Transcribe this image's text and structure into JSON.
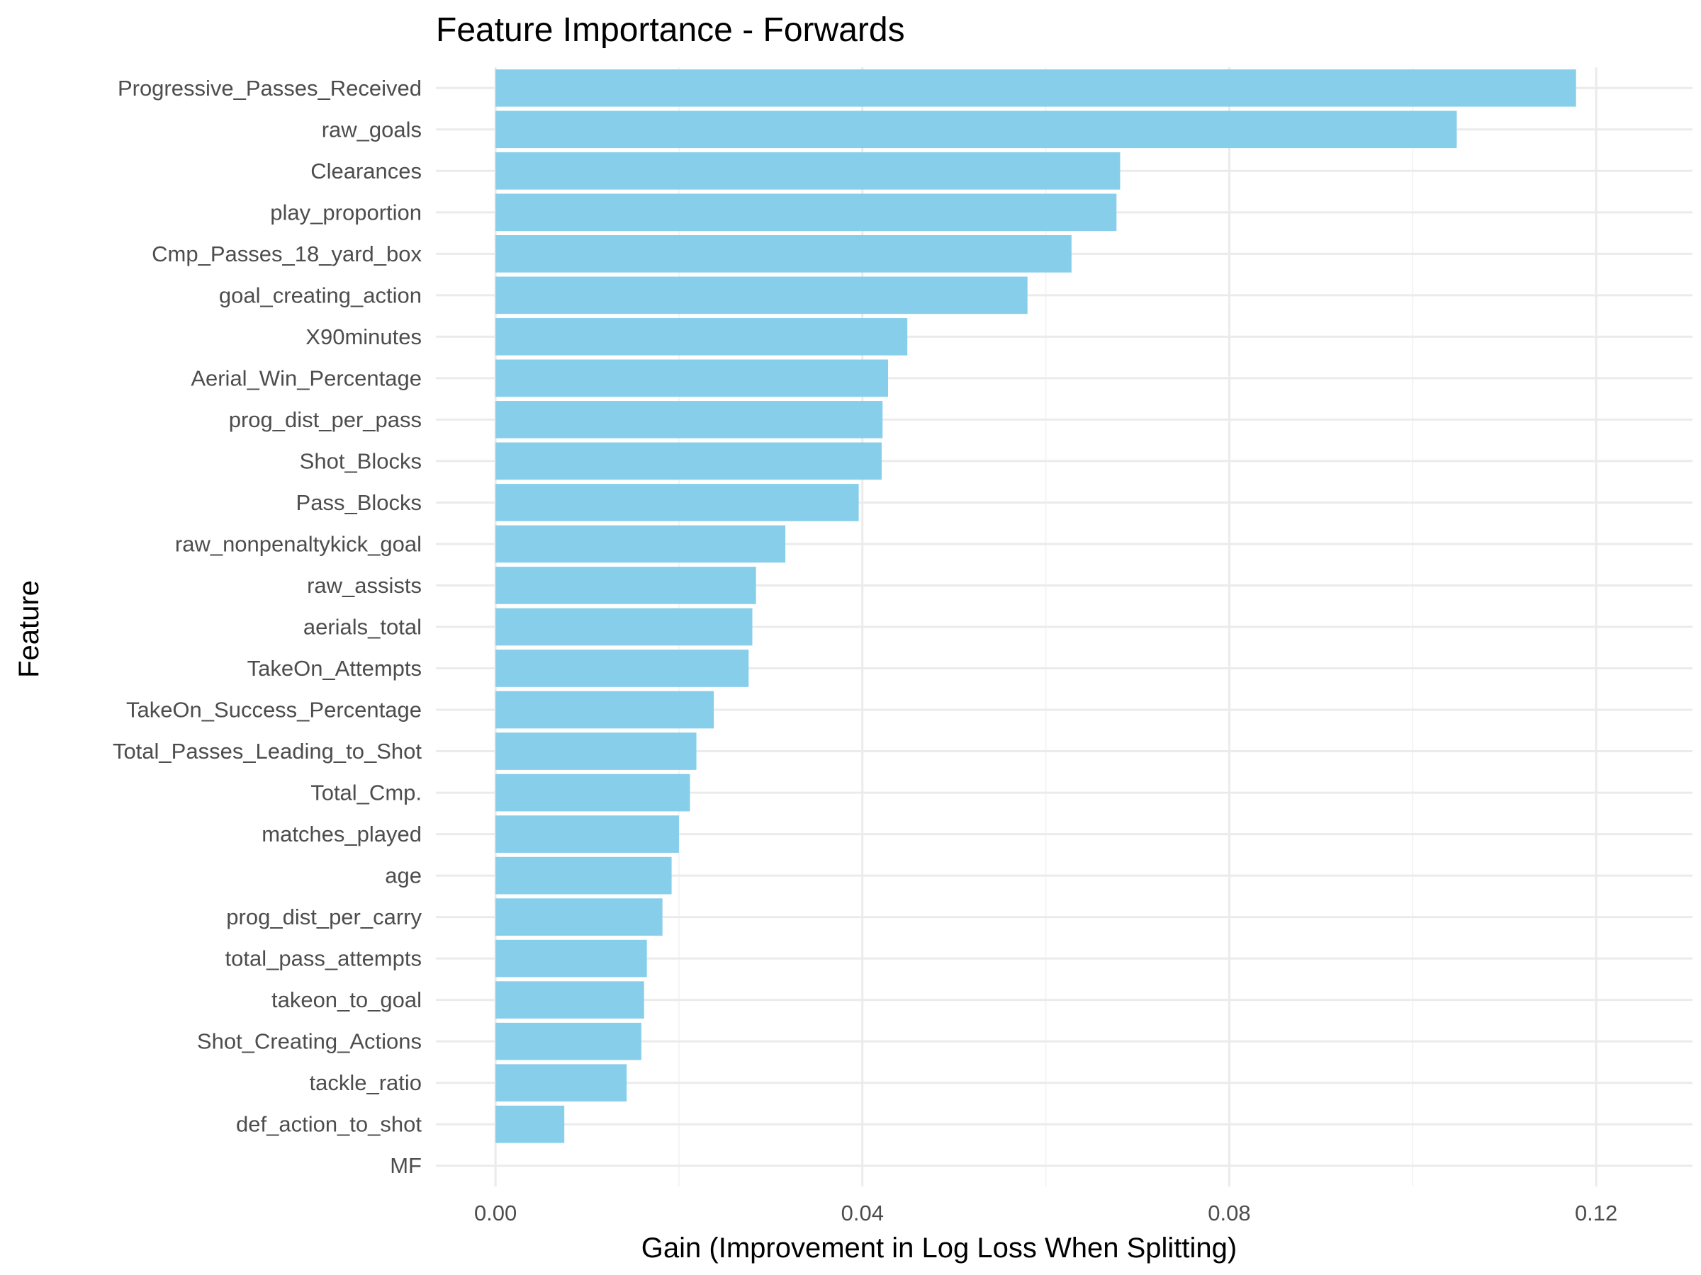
{
  "chart_data": {
    "type": "bar",
    "orientation": "horizontal",
    "title": "Feature Importance - Forwards",
    "xlabel": "Gain (Improvement in Log Loss When Splitting)",
    "ylabel": "Feature",
    "xlim": [
      -0.0065,
      0.1305
    ],
    "x_ticks": [
      0.0,
      0.04,
      0.08,
      0.12
    ],
    "x_tick_labels": [
      "0.00",
      "0.04",
      "0.08",
      "0.12"
    ],
    "grid": true,
    "legend": "none",
    "bar_color": "#87ceeb",
    "categories": [
      "Progressive_Passes_Received",
      "raw_goals",
      "Clearances",
      "play_proportion",
      "Cmp_Passes_18_yard_box",
      "goal_creating_action",
      "X90minutes",
      "Aerial_Win_Percentage",
      "prog_dist_per_pass",
      "Shot_Blocks",
      "Pass_Blocks",
      "raw_nonpenaltykick_goal",
      "raw_assists",
      "aerials_total",
      "TakeOn_Attempts",
      "TakeOn_Success_Percentage",
      "Total_Passes_Leading_to_Shot",
      "Total_Cmp.",
      "matches_played",
      "age",
      "prog_dist_per_carry",
      "total_pass_attempts",
      "takeon_to_goal",
      "Shot_Creating_Actions",
      "tackle_ratio",
      "def_action_to_shot",
      "MF"
    ],
    "values": [
      0.1178,
      0.1048,
      0.0681,
      0.0677,
      0.0628,
      0.058,
      0.0449,
      0.0428,
      0.0422,
      0.0421,
      0.0396,
      0.0316,
      0.0284,
      0.028,
      0.0276,
      0.0238,
      0.0219,
      0.0212,
      0.02,
      0.0192,
      0.0182,
      0.0165,
      0.0162,
      0.0159,
      0.0143,
      0.0075,
      0.0
    ]
  }
}
